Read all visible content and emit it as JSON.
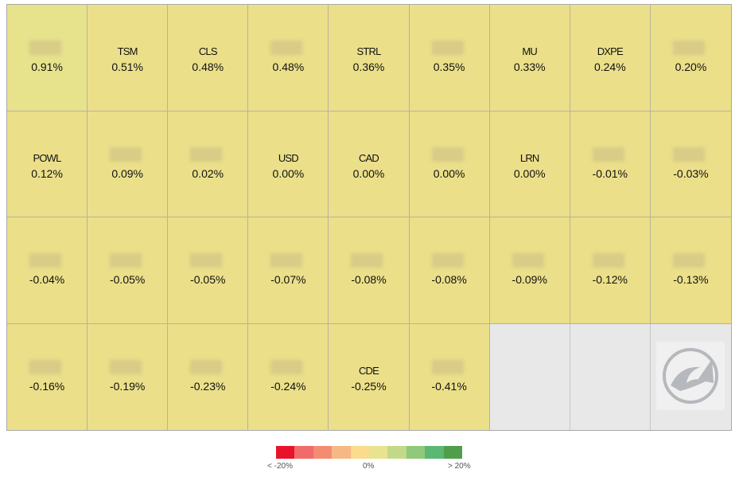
{
  "tiles": [
    {
      "ticker": null,
      "change": "0.91%"
    },
    {
      "ticker": "TSM",
      "change": "0.51%"
    },
    {
      "ticker": "CLS",
      "change": "0.48%"
    },
    {
      "ticker": null,
      "change": "0.48%"
    },
    {
      "ticker": "STRL",
      "change": "0.36%"
    },
    {
      "ticker": null,
      "change": "0.35%"
    },
    {
      "ticker": "MU",
      "change": "0.33%"
    },
    {
      "ticker": "DXPE",
      "change": "0.24%"
    },
    {
      "ticker": null,
      "change": "0.20%"
    },
    {
      "ticker": "POWL",
      "change": "0.12%"
    },
    {
      "ticker": null,
      "change": "0.09%"
    },
    {
      "ticker": null,
      "change": "0.02%"
    },
    {
      "ticker": "USD",
      "change": "0.00%"
    },
    {
      "ticker": "CAD",
      "change": "0.00%"
    },
    {
      "ticker": null,
      "change": "0.00%"
    },
    {
      "ticker": "LRN",
      "change": "0.00%"
    },
    {
      "ticker": null,
      "change": "-0.01%"
    },
    {
      "ticker": null,
      "change": "-0.03%"
    },
    {
      "ticker": null,
      "change": "-0.04%"
    },
    {
      "ticker": null,
      "change": "-0.05%"
    },
    {
      "ticker": null,
      "change": "-0.05%"
    },
    {
      "ticker": null,
      "change": "-0.07%"
    },
    {
      "ticker": null,
      "change": "-0.08%"
    },
    {
      "ticker": null,
      "change": "-0.08%"
    },
    {
      "ticker": null,
      "change": "-0.09%"
    },
    {
      "ticker": null,
      "change": "-0.12%"
    },
    {
      "ticker": null,
      "change": "-0.13%"
    },
    {
      "ticker": null,
      "change": "-0.16%"
    },
    {
      "ticker": null,
      "change": "-0.19%"
    },
    {
      "ticker": null,
      "change": "-0.23%"
    },
    {
      "ticker": null,
      "change": "-0.24%"
    },
    {
      "ticker": "CDE",
      "change": "-0.25%"
    },
    {
      "ticker": null,
      "change": "-0.41%"
    }
  ],
  "legend": {
    "labels": [
      "< -20%",
      "0%",
      "> 20%"
    ]
  }
}
